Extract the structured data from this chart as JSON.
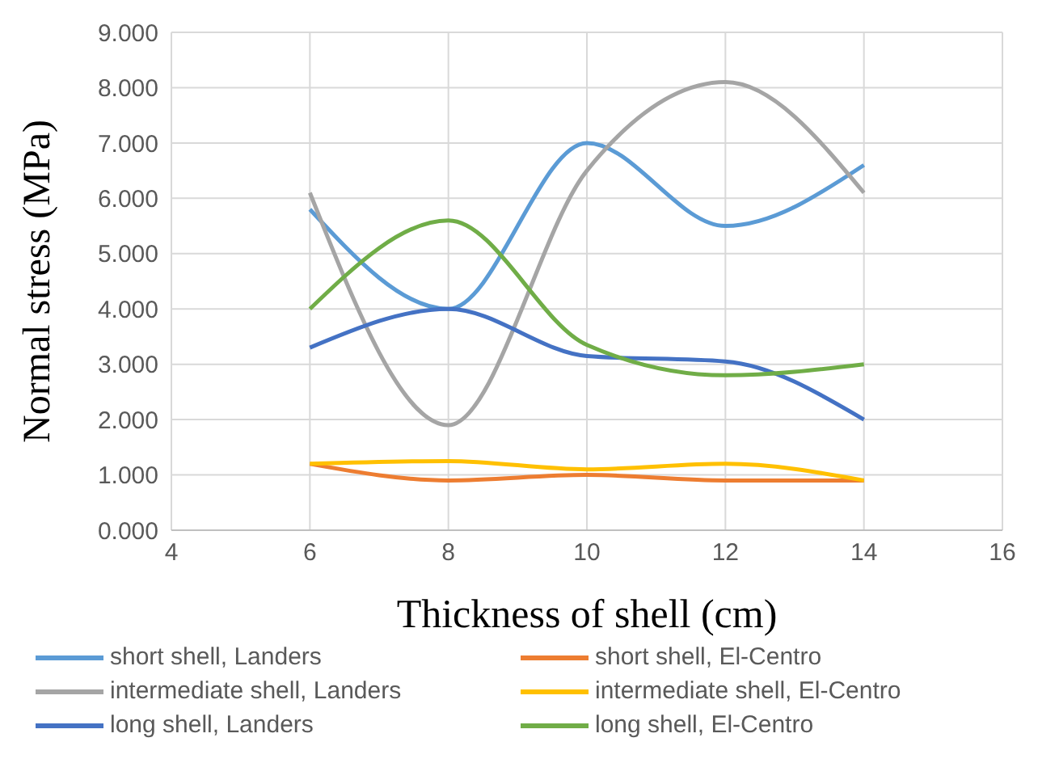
{
  "chart_data": {
    "type": "line",
    "xlabel": "Thickness of shell (cm)",
    "ylabel": "Normal stress (MPa)",
    "x": [
      6,
      8,
      10,
      12,
      14
    ],
    "series": [
      {
        "name": "short shell, Landers",
        "color": "#5b9bd5",
        "values": [
          5.8,
          4.0,
          7.0,
          5.5,
          6.6
        ]
      },
      {
        "name": "short shell, El-Centro",
        "color": "#ed7d31",
        "values": [
          1.2,
          0.9,
          1.0,
          0.9,
          0.9
        ]
      },
      {
        "name": "intermediate shell, Landers",
        "color": "#a5a5a5",
        "values": [
          6.1,
          1.9,
          6.5,
          8.1,
          6.1
        ]
      },
      {
        "name": "intermediate shell, El-Centro",
        "color": "#ffc000",
        "values": [
          1.2,
          1.25,
          1.1,
          1.2,
          0.9
        ]
      },
      {
        "name": "long shell, Landers",
        "color": "#4472c4",
        "values": [
          3.3,
          4.0,
          3.15,
          3.05,
          2.0
        ]
      },
      {
        "name": "long shell, El-Centro",
        "color": "#70ad47",
        "values": [
          4.0,
          5.6,
          3.35,
          2.8,
          3.0
        ]
      }
    ],
    "xlim": [
      4,
      16
    ],
    "xticks": [
      4,
      6,
      8,
      10,
      12,
      14,
      16
    ],
    "ylim": [
      0,
      9
    ],
    "yticks": [
      {
        "value": 0,
        "label": "0.000"
      },
      {
        "value": 1,
        "label": "1.000"
      },
      {
        "value": 2,
        "label": "2.000"
      },
      {
        "value": 3,
        "label": "3.000"
      },
      {
        "value": 4,
        "label": "4.000"
      },
      {
        "value": 5,
        "label": "5.000"
      },
      {
        "value": 6,
        "label": "6.000"
      },
      {
        "value": 7,
        "label": "7.000"
      },
      {
        "value": 8,
        "label": "8.000"
      },
      {
        "value": 9,
        "label": "9.000"
      }
    ],
    "grid": true,
    "legend": "bottom",
    "marker": "none",
    "line_style": "solid"
  }
}
